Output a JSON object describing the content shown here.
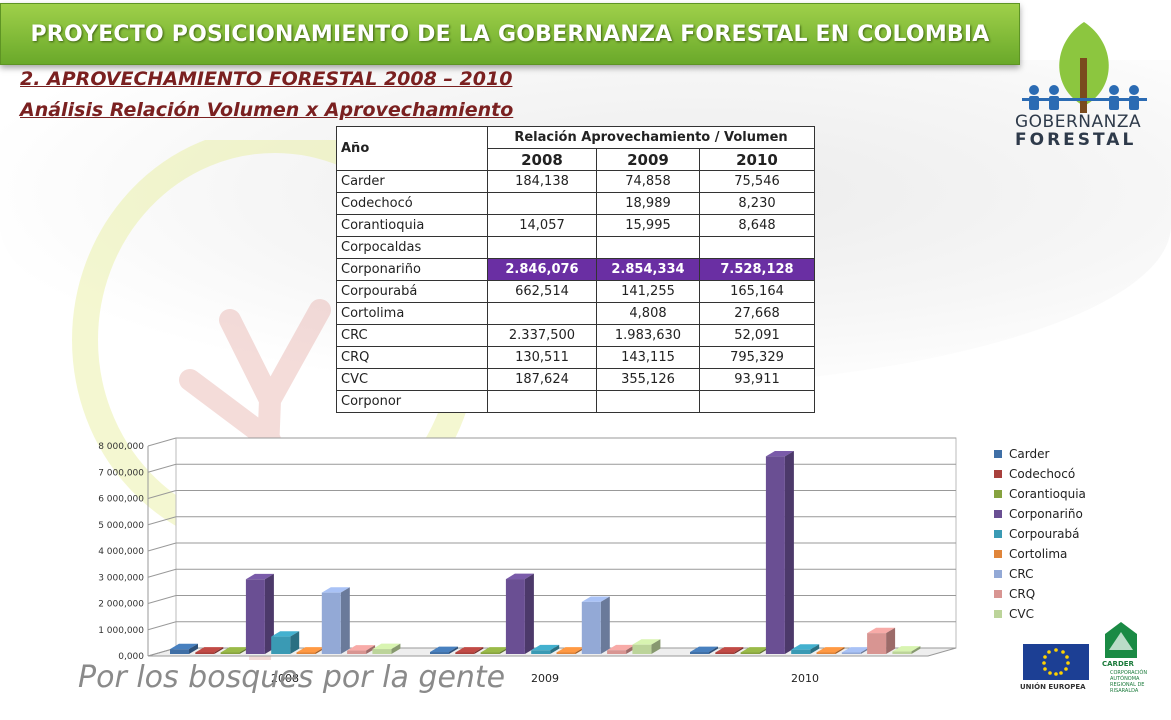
{
  "header": {
    "title": "PROYECTO POSICIONAMIENTO DE LA GOBERNANZA FORESTAL EN COLOMBIA",
    "subtitle1": "2. APROVECHAMIENTO FORESTAL 2008 – 2010",
    "subtitle2": "Análisis Relación Volumen x Aprovechamiento"
  },
  "logo": {
    "line1": "GOBERNANZA",
    "line2": "FORESTAL"
  },
  "table": {
    "col_year": "Año",
    "col_group": "Relación Aprovechamiento / Volumen",
    "years": [
      "2008",
      "2009",
      "2010"
    ],
    "rows": [
      {
        "name": "Carder",
        "v": [
          "184,138",
          "74,858",
          "75,546"
        ]
      },
      {
        "name": "Codechocó",
        "v": [
          "",
          "18,989",
          "8,230"
        ]
      },
      {
        "name": "Corantioquia",
        "v": [
          "14,057",
          "15,995",
          "8,648"
        ]
      },
      {
        "name": "Corpocaldas",
        "v": [
          "",
          "",
          ""
        ]
      },
      {
        "name": "Corponariño",
        "v": [
          "2.846,076",
          "2.854,334",
          "7.528,128"
        ],
        "highlight": true
      },
      {
        "name": "Corpourabá",
        "v": [
          "662,514",
          "141,255",
          "165,164"
        ]
      },
      {
        "name": "Cortolima",
        "v": [
          "",
          "4,808",
          "27,668"
        ]
      },
      {
        "name": "CRC",
        "v": [
          "2.337,500",
          "1.983,630",
          "52,091"
        ]
      },
      {
        "name": "CRQ",
        "v": [
          "130,511",
          "143,115",
          "795,329"
        ]
      },
      {
        "name": "CVC",
        "v": [
          "187,624",
          "355,126",
          "93,911"
        ]
      },
      {
        "name": "Corponor",
        "v": [
          "",
          "",
          ""
        ]
      }
    ]
  },
  "chart_data": {
    "type": "bar",
    "categories": [
      "2008",
      "2009",
      "2010"
    ],
    "ylim": [
      0,
      8000000
    ],
    "yticks": [
      0,
      1000000,
      2000000,
      3000000,
      4000000,
      5000000,
      6000000,
      7000000,
      8000000
    ],
    "ytick_labels": [
      "0,000",
      "1 000,000",
      "2 000,000",
      "3 000,000",
      "4 000,000",
      "5 000,000",
      "6 000,000",
      "7 000,000",
      "8 000,000"
    ],
    "legend_position": "right",
    "series": [
      {
        "name": "Carder",
        "color": "#3f6fa6",
        "values": [
          184138,
          74858,
          75546
        ]
      },
      {
        "name": "Codechocó",
        "color": "#a8403c",
        "values": [
          0,
          18989,
          8230
        ]
      },
      {
        "name": "Corantioquia",
        "color": "#86a23f",
        "values": [
          14057,
          15995,
          8648
        ]
      },
      {
        "name": "Corponariño",
        "color": "#6a4f93",
        "values": [
          2846076,
          2854334,
          7528128
        ]
      },
      {
        "name": "Corpourabá",
        "color": "#3a9ab4",
        "values": [
          662514,
          141255,
          165164
        ]
      },
      {
        "name": "Cortolima",
        "color": "#e0853a",
        "values": [
          0,
          4808,
          27668
        ]
      },
      {
        "name": "CRC",
        "color": "#93a9d6",
        "values": [
          2337500,
          1983630,
          52091
        ]
      },
      {
        "name": "CRQ",
        "color": "#d89592",
        "values": [
          130511,
          143115,
          795329
        ]
      },
      {
        "name": "CVC",
        "color": "#bcd49a",
        "values": [
          187624,
          355126,
          93911
        ]
      }
    ]
  },
  "footer": {
    "slogan": "Por los bosques por la gente",
    "eu_label": "UNIÓN EUROPEA",
    "carder_label": "CARDER",
    "carder_sub": "CORPORACIÓN AUTÓNOMA REGIONAL DE RISARALDA"
  },
  "colors": {
    "banner": "#7db535",
    "subtitle": "#7a2020",
    "highlight": "#6a2fa3"
  }
}
